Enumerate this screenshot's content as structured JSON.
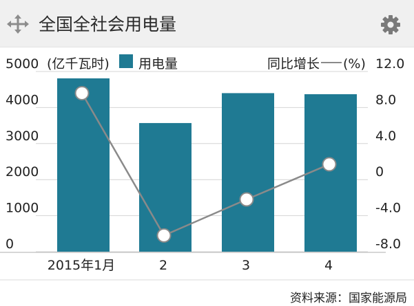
{
  "header": {
    "title": "全国全社会用电量",
    "move_icon": "move-arrows-icon",
    "settings_icon": "gear-icon"
  },
  "colors": {
    "bar": "#1f7a93",
    "line": "#8a8a8a",
    "header_bg": "#f0f0f0",
    "gear": "#7a7a7a"
  },
  "chart_data": {
    "type": "bar",
    "categories": [
      "2015年1月",
      "2",
      "3",
      "4"
    ],
    "series": [
      {
        "name": "用电量",
        "type": "bar",
        "axis": "left",
        "values": [
          4810,
          3570,
          4400,
          4370
        ]
      },
      {
        "name": "同比增长",
        "type": "line",
        "axis": "right",
        "values": [
          9.6,
          -6.2,
          -2.2,
          1.7
        ]
      }
    ],
    "ylabel_left": "(亿千瓦时)",
    "ylabel_right": "同比增长",
    "right_unit": "(%)",
    "ylim_left": [
      0,
      5000
    ],
    "ylim_right": [
      -8,
      12
    ],
    "yticks_left": [
      "0",
      "1000",
      "2000",
      "3000",
      "4000",
      "5000"
    ],
    "yticks_right": [
      "-8.0",
      "-4.0",
      "0",
      "4.0",
      "8.0",
      "12.0"
    ],
    "legend": [
      "用电量",
      "同比增长"
    ],
    "grid": true
  },
  "footer": {
    "source": "资料来源：国家能源局"
  }
}
